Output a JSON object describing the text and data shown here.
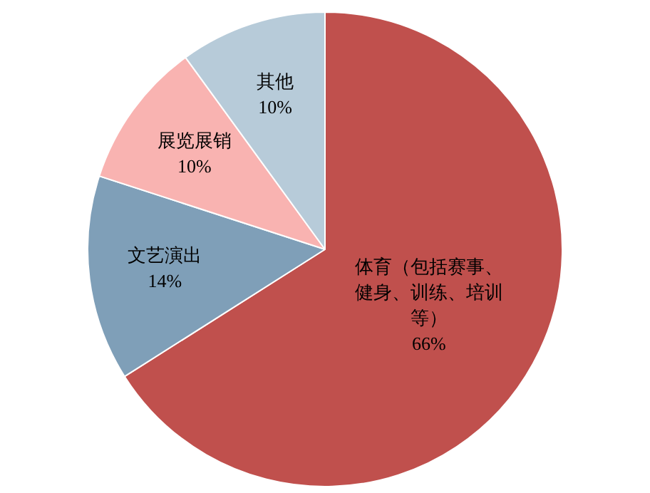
{
  "chart_data": {
    "type": "pie",
    "categories": [
      "体育（包括赛事、健身、训练、培训等）",
      "文艺演出",
      "展览展销",
      "其他"
    ],
    "values": [
      66,
      14,
      10,
      10
    ],
    "value_labels": [
      "66%",
      "14%",
      "10%",
      "10%"
    ],
    "colors": [
      "#c0504d",
      "#7f9fb8",
      "#f9b3b1",
      "#b7cbd9"
    ],
    "legend": false
  }
}
